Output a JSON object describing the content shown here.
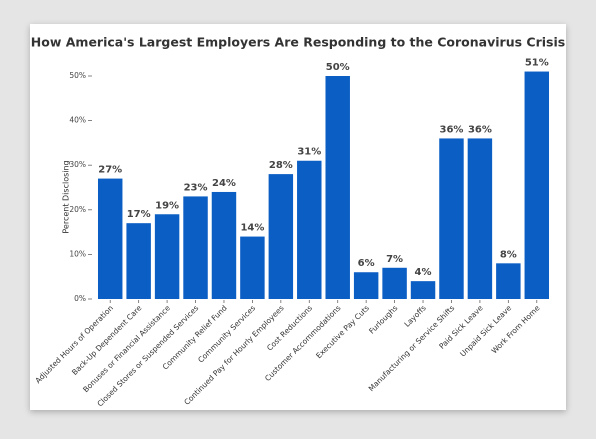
{
  "chart_data": {
    "type": "bar",
    "title": "How America's Largest Employers Are Responding to the Coronavirus Crisis",
    "y_label": "Percent Disclosing",
    "categories": [
      "Adjusted Hours of Operation",
      "Back-Up Dependent Care",
      "Bonuses or Financial Assistance",
      "Closed Stores or Suspended Services",
      "Community Relief Fund",
      "Community Services",
      "Continued Pay for Hourly Employees",
      "Cost Reductions",
      "Customer Accommodations",
      "Executive Pay Cuts",
      "Furloughs",
      "Layoffs",
      "Manufacturing or Service Shifts",
      "Paid Sick Leave",
      "Unpaid Sick Leave",
      "Work From Home"
    ],
    "values": [
      27,
      17,
      19,
      23,
      24,
      14,
      28,
      31,
      50,
      6,
      7,
      4,
      36,
      36,
      8,
      51
    ],
    "value_labels": [
      "27%",
      "17%",
      "19%",
      "23%",
      "24%",
      "14%",
      "28%",
      "31%",
      "50%",
      "6%",
      "7%",
      "4%",
      "36%",
      "36%",
      "8%",
      "51%"
    ],
    "color": "#0a5ec4",
    "ylim": [
      0,
      55
    ],
    "yticks": [
      {
        "value": 0,
        "label": "0%"
      },
      {
        "value": 10,
        "label": "10%"
      },
      {
        "value": 20,
        "label": "20%"
      },
      {
        "value": 30,
        "label": "30%"
      },
      {
        "value": 40,
        "label": "40%"
      },
      {
        "value": 50,
        "label": "50%"
      }
    ]
  }
}
